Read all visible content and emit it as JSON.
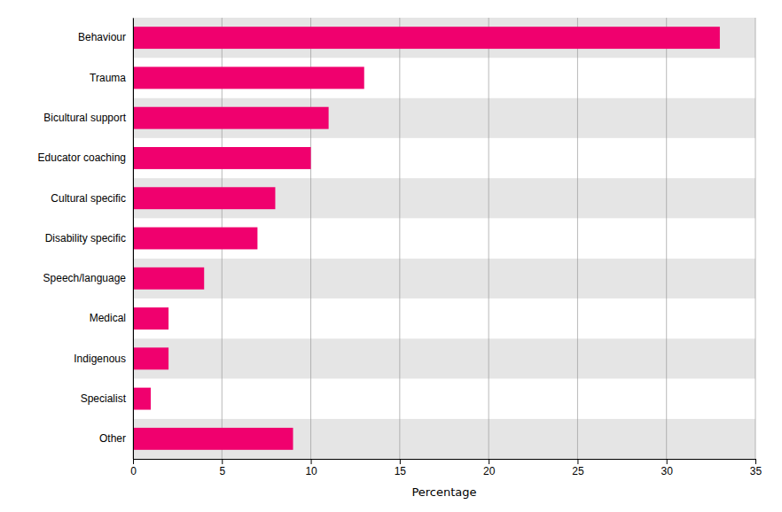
{
  "chart_data": {
    "type": "bar",
    "orientation": "horizontal",
    "categories": [
      "Other",
      "Specialist",
      "Indigenous",
      "Medical",
      "Speech/language",
      "Disability specific",
      "Cultural specific",
      "Educator coaching",
      "Bicultural support",
      "Trauma",
      "Behaviour"
    ],
    "values": [
      9,
      1,
      2,
      2,
      4,
      7,
      8,
      10,
      11,
      13,
      33
    ],
    "color": "#F0006E",
    "xlabel": "Percentage",
    "xlim": [
      0,
      35
    ],
    "xticks": [
      0,
      5,
      10,
      15,
      20,
      25,
      30,
      35
    ],
    "grid": true
  }
}
